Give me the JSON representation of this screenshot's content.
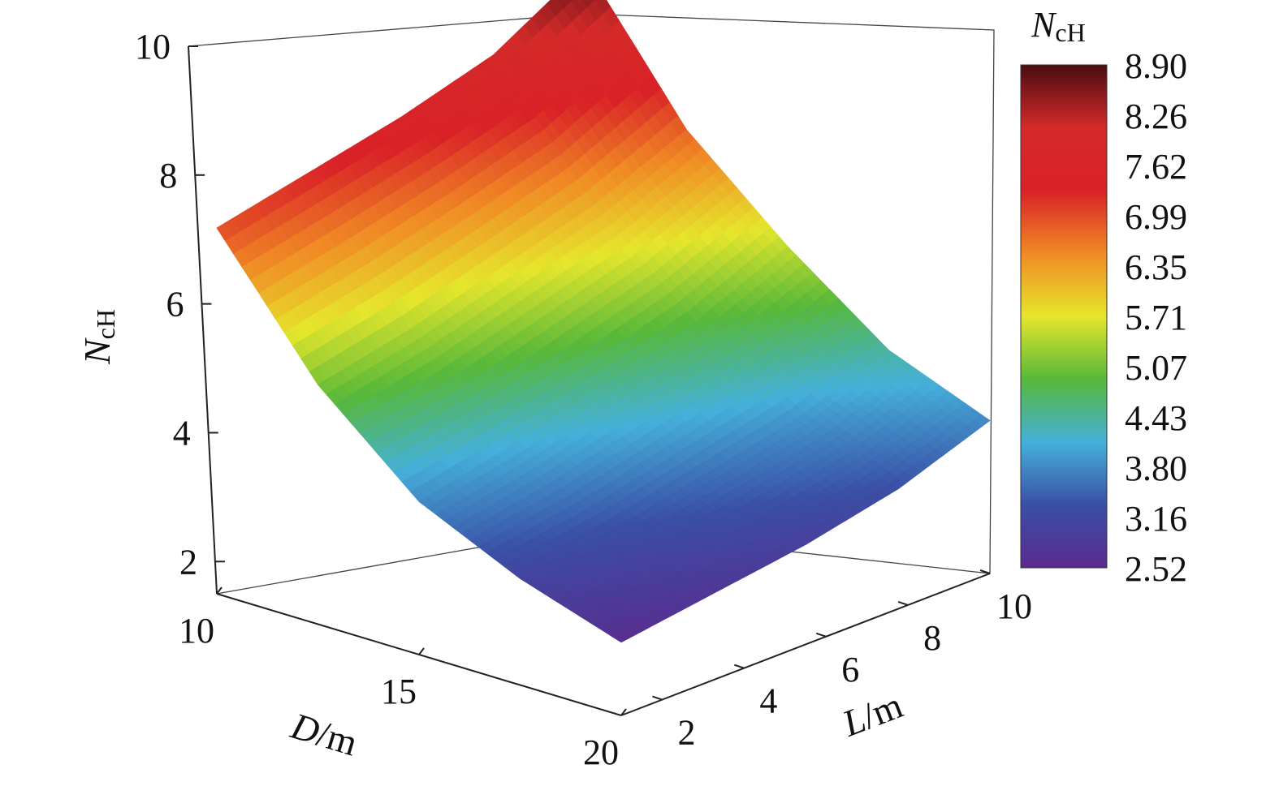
{
  "chart_data": {
    "type": "surface3d",
    "title": "",
    "xlabel": {
      "var": "D",
      "unit": "/m"
    },
    "ylabel": {
      "var": "L",
      "unit": "/m"
    },
    "zlabel": {
      "var": "N",
      "sub": "cH"
    },
    "xlim": [
      10,
      20
    ],
    "ylim": [
      1,
      10
    ],
    "zlim": [
      1.5,
      10
    ],
    "x_ticks": [
      "10",
      "15",
      "20"
    ],
    "y_ticks": [
      "2",
      "4",
      "6",
      "8",
      "10"
    ],
    "z_ticks": [
      "2",
      "4",
      "6",
      "8",
      "10"
    ],
    "surface": {
      "x": [
        10,
        12.5,
        15,
        17.5,
        20
      ],
      "y": [
        1,
        3.25,
        5.5,
        7.75,
        10
      ],
      "z": [
        [
          7.0,
          7.3,
          7.6,
          8.0,
          8.8
        ],
        [
          5.1,
          5.4,
          5.8,
          6.2,
          6.8
        ],
        [
          3.8,
          4.1,
          4.5,
          4.9,
          5.5
        ],
        [
          3.1,
          3.3,
          3.6,
          3.9,
          4.4
        ],
        [
          2.6,
          2.8,
          3.0,
          3.3,
          3.8
        ]
      ]
    },
    "colorbar": {
      "title": {
        "var": "N",
        "sub": "cH"
      },
      "ticks": [
        "8.90",
        "8.26",
        "7.62",
        "6.99",
        "6.35",
        "5.71",
        "5.07",
        "4.43",
        "3.80",
        "3.16",
        "2.52"
      ],
      "range": [
        2.52,
        8.9
      ],
      "colors": [
        "#5b2a8e",
        "#3a4fa5",
        "#45b0da",
        "#57b83a",
        "#e6e62c",
        "#f08a25",
        "#d92127",
        "#d42a2a",
        "#4a0c10"
      ]
    }
  }
}
